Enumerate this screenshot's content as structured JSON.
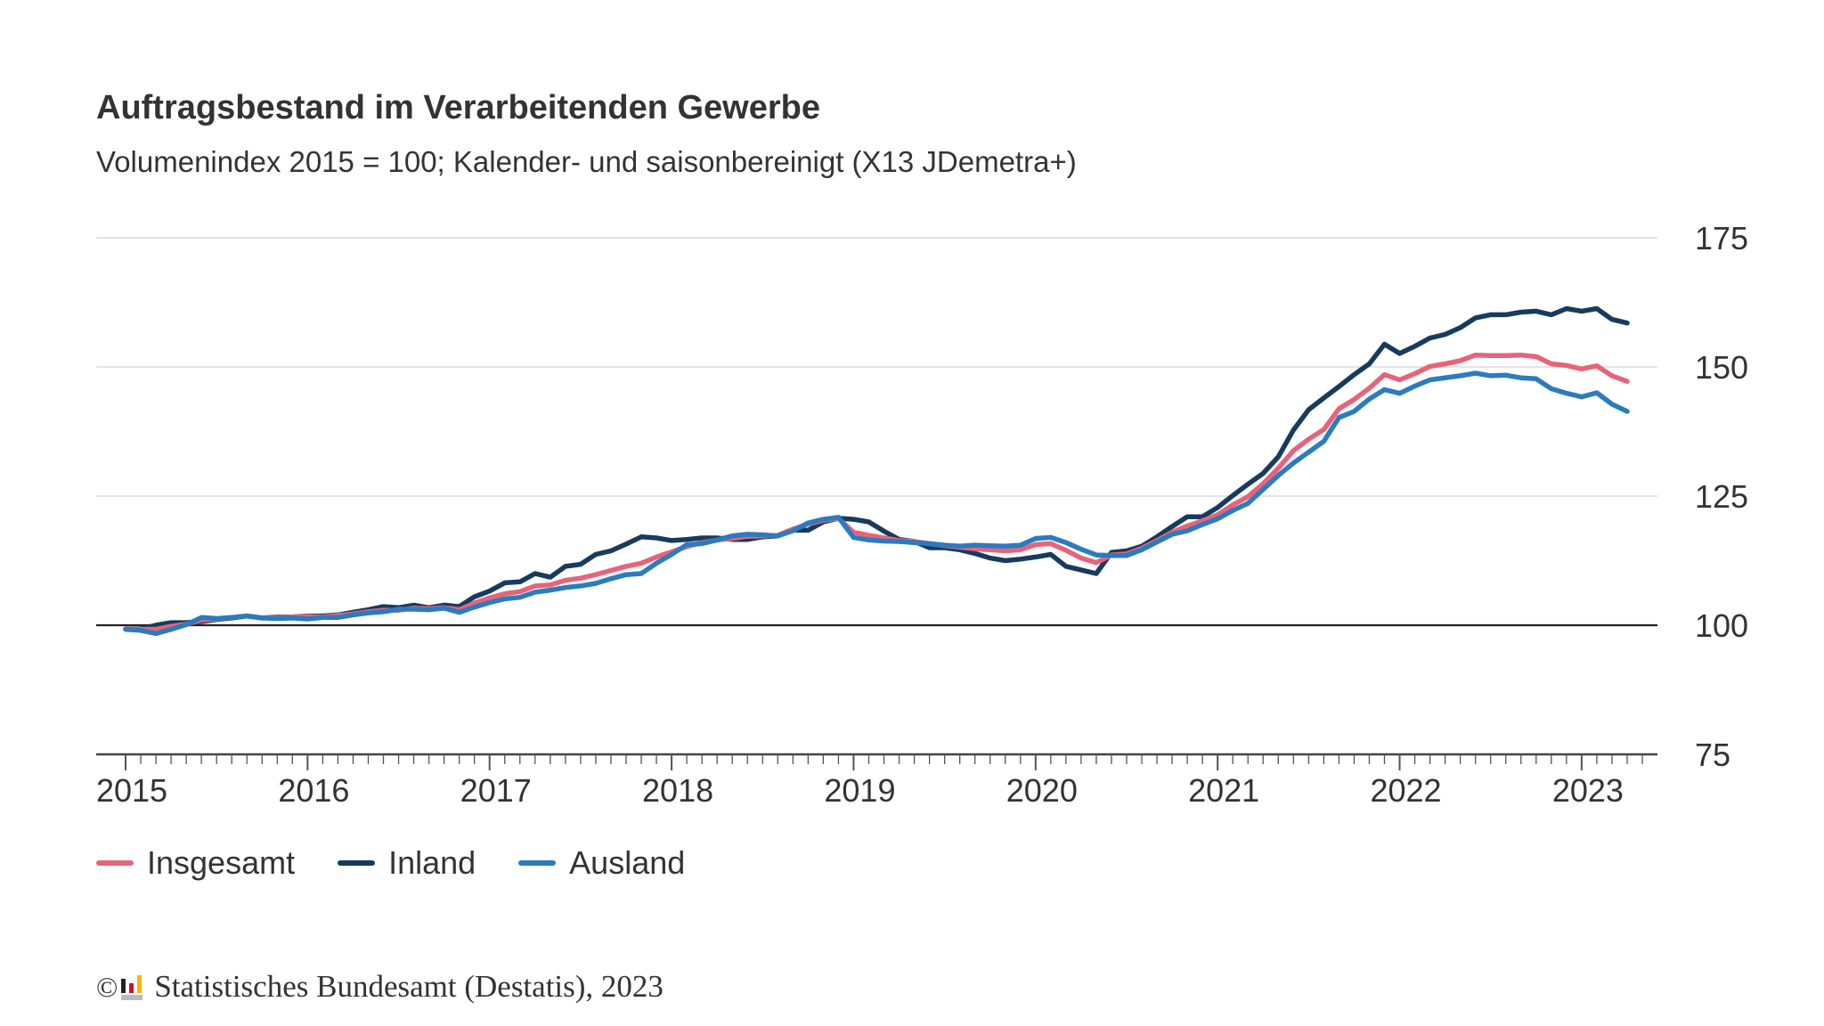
{
  "chart_data": {
    "type": "line",
    "title": "Auftragsbestand im Verarbeitenden Gewerbe",
    "subtitle": "Volumenindex 2015 = 100; Kalender- und saisonbereinigt (X13 JDemetra+)",
    "x_start": "2015-01",
    "x_frequency": "monthly",
    "x_ticks": [
      "2015",
      "2016",
      "2017",
      "2018",
      "2019",
      "2020",
      "2021",
      "2022",
      "2023"
    ],
    "y_ticks": [
      75,
      100,
      125,
      150,
      175
    ],
    "ylim": [
      75,
      175
    ],
    "grid": true,
    "legend_position": "bottom-left",
    "series": [
      {
        "name": "Insgesamt",
        "color": "#e8637a",
        "values": [
          99.3,
          99.2,
          99.2,
          99.8,
          100.2,
          101.0,
          101.2,
          101.5,
          101.8,
          101.4,
          101.5,
          101.6,
          101.7,
          101.6,
          101.9,
          102.2,
          102.6,
          102.9,
          102.9,
          103.3,
          103.2,
          103.4,
          103.0,
          104.3,
          105.3,
          106.1,
          106.5,
          107.6,
          107.8,
          108.7,
          109.1,
          109.8,
          110.6,
          111.4,
          112.0,
          113.2,
          114.2,
          115.2,
          116.0,
          116.5,
          116.8,
          117.2,
          117.3,
          117.4,
          118.6,
          119.6,
          120.3,
          120.7,
          118.0,
          117.4,
          116.9,
          116.4,
          116.2,
          115.8,
          115.4,
          115.1,
          114.8,
          114.6,
          114.4,
          114.6,
          115.6,
          115.8,
          114.5,
          113.0,
          112.1,
          113.6,
          113.8,
          114.9,
          116.4,
          118.0,
          119.2,
          120.2,
          121.4,
          123.3,
          124.9,
          127.4,
          130.4,
          133.8,
          136.0,
          137.9,
          141.9,
          143.7,
          145.9,
          148.5,
          147.5,
          148.7,
          150.1,
          150.6,
          151.2,
          152.3,
          152.2,
          152.2,
          152.3,
          152.0,
          150.6,
          150.3,
          149.6,
          150.2,
          148.3,
          147.2
        ]
      },
      {
        "name": "Inland",
        "color": "#163b5e",
        "values": [
          99.3,
          99.3,
          100.0,
          100.5,
          100.5,
          100.7,
          101.1,
          101.4,
          101.8,
          101.4,
          101.6,
          101.6,
          101.8,
          101.8,
          102.0,
          102.5,
          103.0,
          103.6,
          103.4,
          103.9,
          103.4,
          103.9,
          103.6,
          105.5,
          106.6,
          108.2,
          108.4,
          110.0,
          109.3,
          111.4,
          111.8,
          113.7,
          114.4,
          115.7,
          117.1,
          116.9,
          116.4,
          116.6,
          116.9,
          116.9,
          116.6,
          116.6,
          117.1,
          117.3,
          118.4,
          118.4,
          120.0,
          120.7,
          120.5,
          120.0,
          118.2,
          116.6,
          116.2,
          115.0,
          115.0,
          114.6,
          113.9,
          113.0,
          112.5,
          112.8,
          113.2,
          113.7,
          111.4,
          110.7,
          110.0,
          114.1,
          114.4,
          115.3,
          117.1,
          119.1,
          121.0,
          121.0,
          122.8,
          125.1,
          127.3,
          129.4,
          132.6,
          137.8,
          141.7,
          144.0,
          146.2,
          148.5,
          150.6,
          154.4,
          152.6,
          154.0,
          155.6,
          156.3,
          157.6,
          159.5,
          160.1,
          160.1,
          160.6,
          160.8,
          160.1,
          161.3,
          160.8,
          161.3,
          159.2,
          158.5
        ]
      },
      {
        "name": "Ausland",
        "color": "#2b7bbf",
        "values": [
          99.2,
          99.0,
          98.4,
          99.2,
          100.1,
          101.5,
          101.3,
          101.5,
          101.8,
          101.4,
          101.3,
          101.4,
          101.2,
          101.5,
          101.5,
          102.0,
          102.4,
          102.6,
          103.1,
          103.1,
          103.0,
          103.3,
          102.5,
          103.5,
          104.4,
          105.1,
          105.4,
          106.4,
          106.8,
          107.3,
          107.6,
          108.1,
          109.0,
          109.8,
          110.0,
          112.0,
          113.7,
          115.6,
          115.8,
          116.5,
          117.3,
          117.6,
          117.5,
          117.3,
          118.3,
          119.8,
          120.5,
          120.9,
          117.0,
          116.5,
          116.3,
          116.2,
          116.0,
          115.8,
          115.5,
          115.3,
          115.5,
          115.4,
          115.3,
          115.5,
          116.8,
          117.0,
          116.0,
          114.7,
          113.6,
          113.5,
          113.5,
          114.6,
          116.1,
          117.6,
          118.3,
          119.5,
          120.6,
          122.2,
          123.6,
          126.3,
          129.0,
          131.4,
          133.5,
          135.6,
          140.2,
          141.4,
          143.8,
          145.6,
          144.9,
          146.3,
          147.5,
          147.9,
          148.3,
          148.8,
          148.3,
          148.4,
          147.9,
          147.7,
          145.8,
          144.9,
          144.2,
          145.0,
          142.8,
          141.4
        ]
      }
    ]
  },
  "footer": {
    "copyright_symbol": "©",
    "logo": "Destatis",
    "text": "Statistisches Bundesamt (Destatis), 2023"
  }
}
